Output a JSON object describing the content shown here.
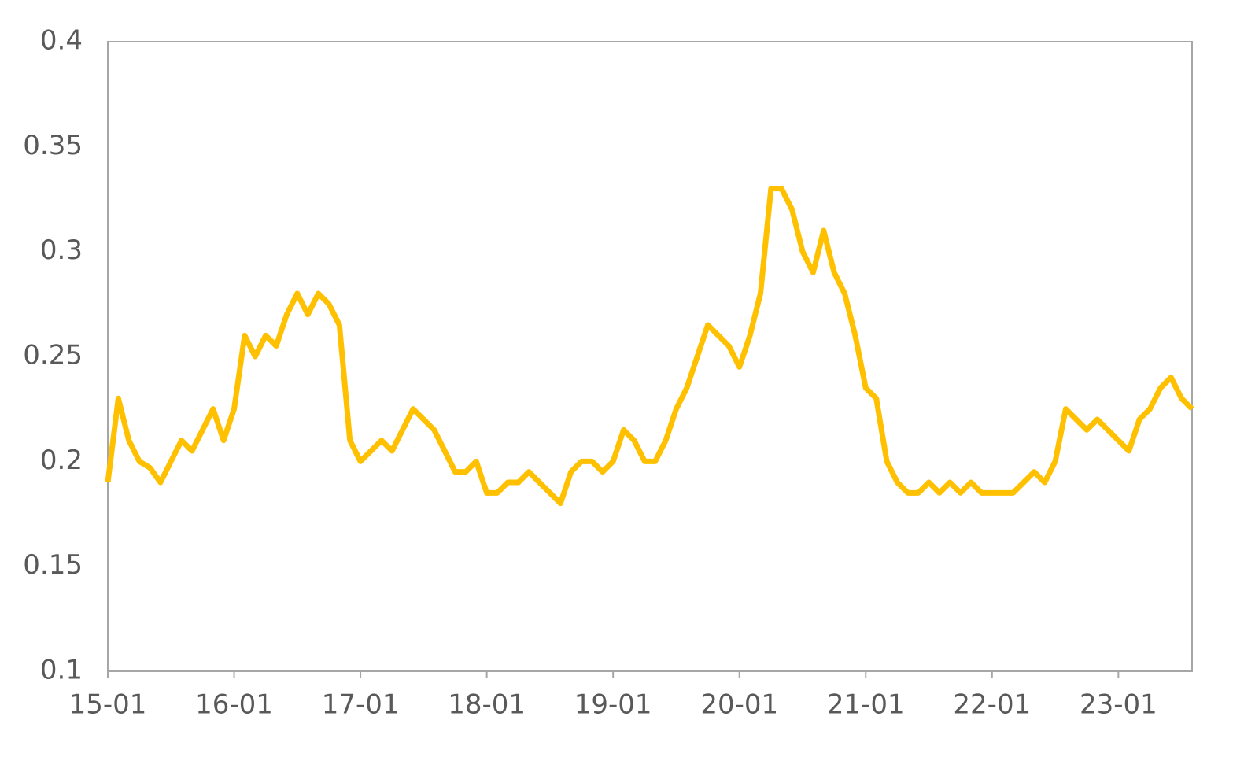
{
  "chart_data": {
    "type": "line",
    "categories": [
      "15-01",
      null,
      null,
      null,
      null,
      null,
      null,
      null,
      null,
      null,
      null,
      null,
      "16-01",
      null,
      null,
      null,
      null,
      null,
      null,
      null,
      null,
      null,
      null,
      null,
      "17-01",
      null,
      null,
      null,
      null,
      null,
      null,
      null,
      null,
      null,
      null,
      null,
      "18-01",
      null,
      null,
      null,
      null,
      null,
      null,
      null,
      null,
      null,
      null,
      null,
      "19-01",
      null,
      null,
      null,
      null,
      null,
      null,
      null,
      null,
      null,
      null,
      null,
      "20-01",
      null,
      null,
      null,
      null,
      null,
      null,
      null,
      null,
      null,
      null,
      null,
      "21-01",
      null,
      null,
      null,
      null,
      null,
      null,
      null,
      null,
      null,
      null,
      null,
      "22-01",
      null,
      null,
      null,
      null,
      null,
      null,
      null,
      null,
      null,
      null,
      null,
      "23-01",
      null,
      null,
      null,
      null,
      null,
      null,
      null
    ],
    "series": [
      {
        "color": "#FFC000",
        "values": [
          0.19,
          0.23,
          0.21,
          0.2,
          0.197,
          0.19,
          0.2,
          0.21,
          0.205,
          0.215,
          0.225,
          0.21,
          0.225,
          0.26,
          0.25,
          0.26,
          0.255,
          0.27,
          0.28,
          0.27,
          0.28,
          0.275,
          0.265,
          0.21,
          0.2,
          0.205,
          0.21,
          0.205,
          0.215,
          0.225,
          0.22,
          0.215,
          0.205,
          0.195,
          0.195,
          0.2,
          0.185,
          0.185,
          0.19,
          0.19,
          0.195,
          0.19,
          0.185,
          0.18,
          0.195,
          0.2,
          0.2,
          0.195,
          0.2,
          0.215,
          0.21,
          0.2,
          0.2,
          0.21,
          0.225,
          0.235,
          0.25,
          0.265,
          0.26,
          0.255,
          0.245,
          0.26,
          0.28,
          0.33,
          0.33,
          0.32,
          0.3,
          0.29,
          0.31,
          0.29,
          0.28,
          0.26,
          0.235,
          0.23,
          0.2,
          0.19,
          0.185,
          0.185,
          0.19,
          0.185,
          0.19,
          0.185,
          0.19,
          0.185,
          0.185,
          0.185,
          0.185,
          0.19,
          0.195,
          0.19,
          0.2,
          0.225,
          0.22,
          0.215,
          0.22,
          0.215,
          0.21,
          0.205,
          0.22,
          0.225,
          0.235,
          0.24,
          0.23,
          0.225
        ]
      }
    ],
    "ylim": [
      0.1,
      0.4
    ],
    "yticks": [
      0.1,
      0.15,
      0.2,
      0.25,
      0.3,
      0.35,
      0.4
    ],
    "grid": false
  }
}
